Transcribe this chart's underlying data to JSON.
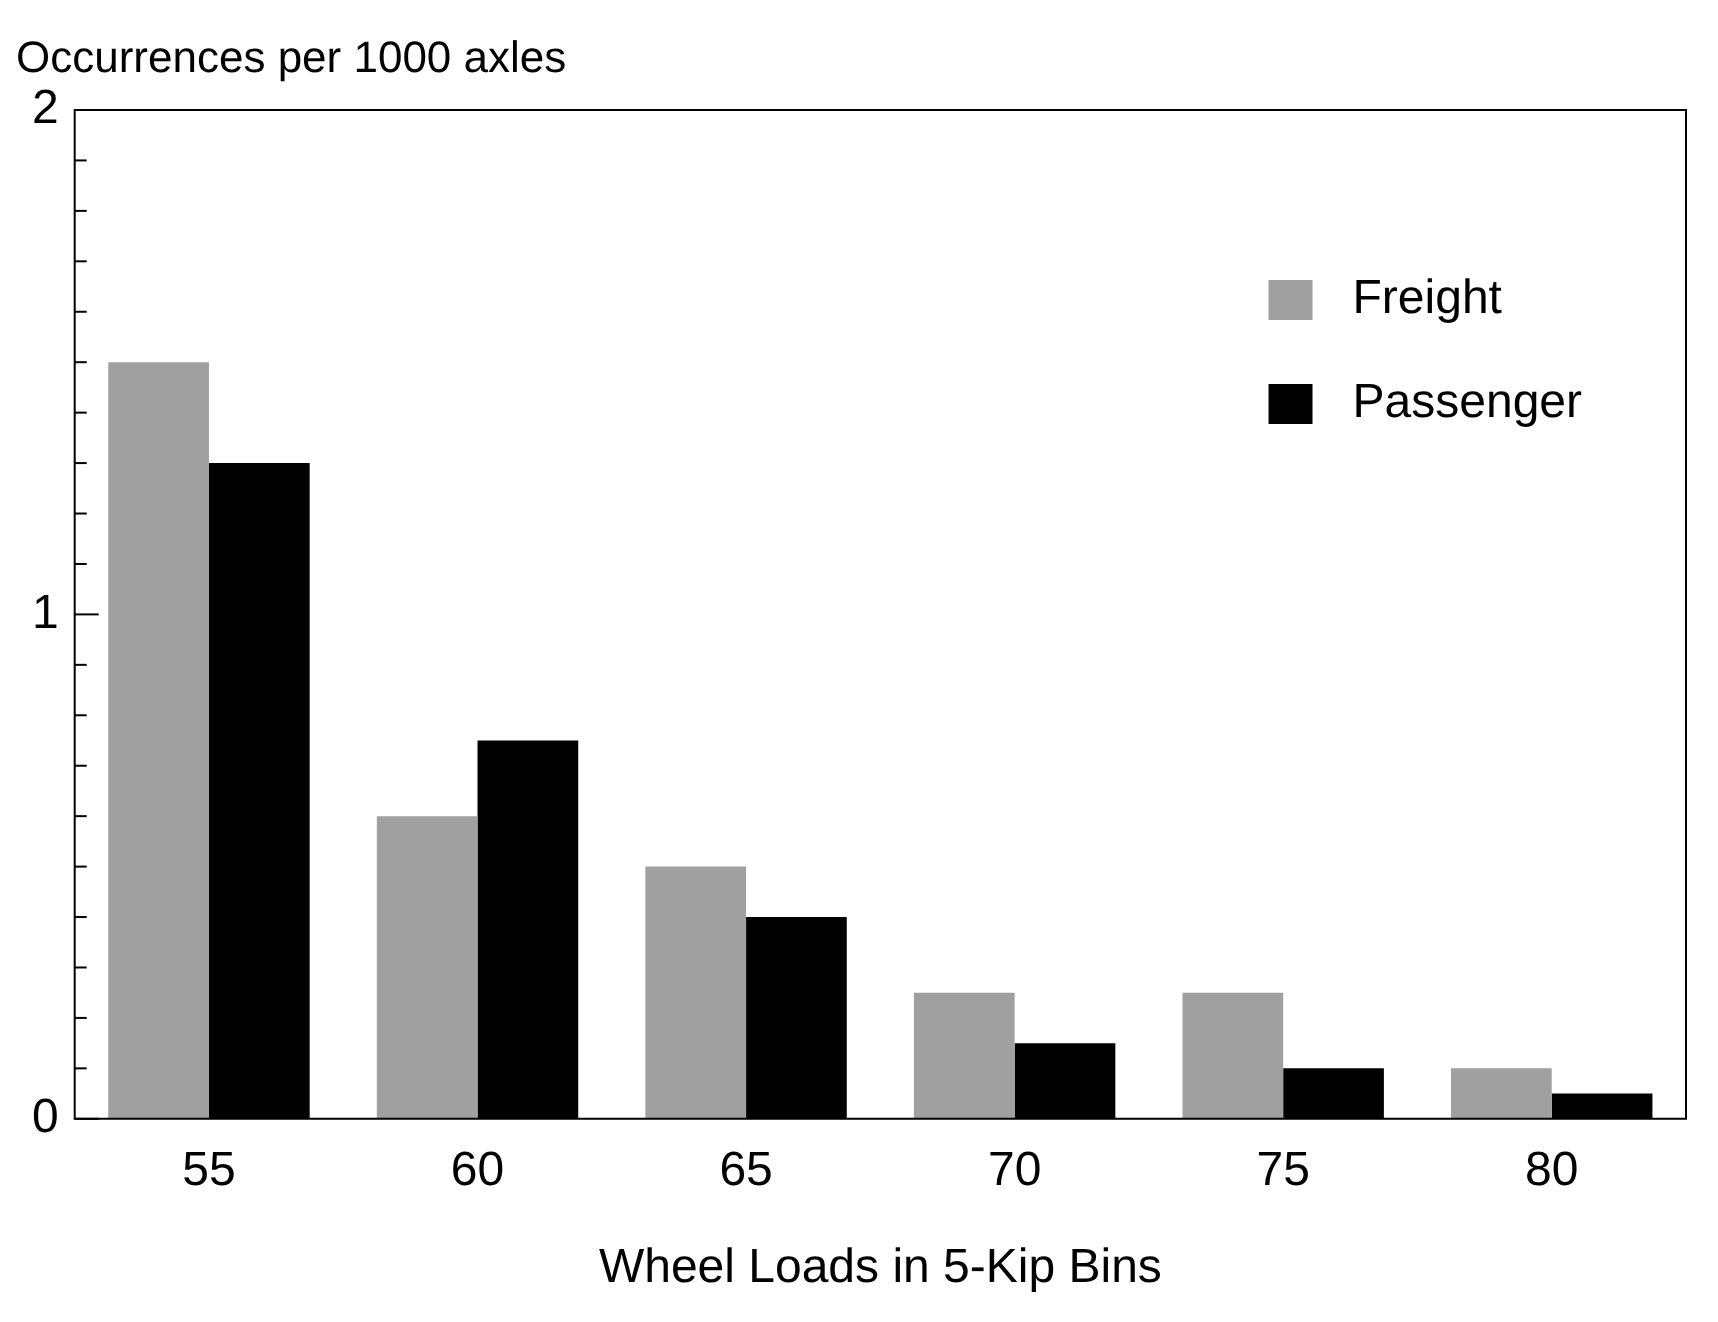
{
  "chart_data": {
    "type": "bar",
    "ylabel": "Occurrences per 1000 axles",
    "xlabel": "Wheel Loads in 5-Kip Bins",
    "categories": [
      "55",
      "60",
      "65",
      "70",
      "75",
      "80"
    ],
    "series": [
      {
        "name": "Freight",
        "color": "#a0a0a0",
        "values": [
          1.5,
          0.6,
          0.5,
          0.25,
          0.25,
          0.1
        ]
      },
      {
        "name": "Passenger",
        "color": "#000000",
        "values": [
          1.3,
          0.75,
          0.4,
          0.15,
          0.1,
          0.05
        ]
      }
    ],
    "ylim": [
      0,
      2
    ],
    "yticks": [
      0,
      {
        "value": 0.1,
        "label": null
      },
      {
        "value": 0.2,
        "label": null
      },
      {
        "value": 0.3,
        "label": null
      },
      {
        "value": 0.4,
        "label": null
      },
      {
        "value": 0.5,
        "label": null
      },
      {
        "value": 0.6,
        "label": null
      },
      {
        "value": 0.7,
        "label": null
      },
      {
        "value": 0.8,
        "label": null
      },
      {
        "value": 0.9,
        "label": null
      },
      1,
      {
        "value": 1.1,
        "label": null
      },
      {
        "value": 1.2,
        "label": null
      },
      {
        "value": 1.3,
        "label": null
      },
      {
        "value": 1.4,
        "label": null
      },
      {
        "value": 1.5,
        "label": null
      },
      {
        "value": 1.6,
        "label": null
      },
      {
        "value": 1.7,
        "label": null
      },
      {
        "value": 1.8,
        "label": null
      },
      {
        "value": 1.9,
        "label": null
      },
      2
    ],
    "grid": false,
    "legend": "top right"
  }
}
